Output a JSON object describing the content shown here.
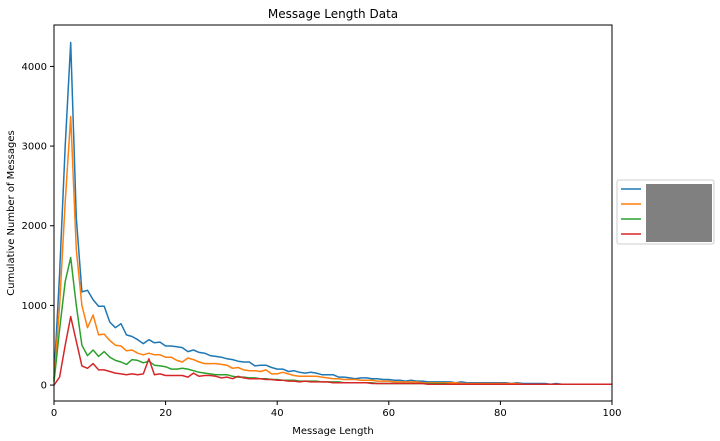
{
  "chart_data": {
    "type": "line",
    "title": "Message Length Data",
    "xlabel": "Message Length",
    "ylabel": "Cumulative Number of Messages",
    "xlim": [
      0,
      100
    ],
    "ylim": [
      -200,
      4520
    ],
    "xticks": [
      0,
      20,
      40,
      60,
      80,
      100
    ],
    "yticks": [
      0,
      1000,
      2000,
      3000,
      4000
    ],
    "grid": false,
    "legend": {
      "placement": "center-right-outside",
      "labels_redacted": true,
      "redaction_color": "#808080"
    },
    "x": [
      0,
      1,
      2,
      3,
      4,
      5,
      6,
      7,
      8,
      9,
      10,
      11,
      12,
      13,
      14,
      15,
      16,
      17,
      18,
      19,
      20,
      21,
      22,
      23,
      24,
      25,
      26,
      27,
      28,
      29,
      30,
      31,
      32,
      33,
      34,
      35,
      36,
      37,
      38,
      39,
      40,
      41,
      42,
      43,
      44,
      45,
      46,
      47,
      48,
      49,
      50,
      51,
      52,
      53,
      54,
      55,
      56,
      57,
      58,
      59,
      60,
      61,
      62,
      63,
      64,
      65,
      66,
      67,
      68,
      69,
      70,
      71,
      72,
      73,
      74,
      75,
      76,
      77,
      78,
      79,
      80,
      81,
      82,
      83,
      84,
      85,
      86,
      87,
      88,
      89,
      90,
      91,
      92,
      93,
      94,
      95,
      96,
      97,
      98,
      99,
      100
    ],
    "series": [
      {
        "color": "#1f77b4",
        "values": [
          80,
          1400,
          3000,
          4300,
          2100,
          1170,
          1190,
          1070,
          990,
          990,
          790,
          720,
          770,
          630,
          610,
          570,
          520,
          570,
          530,
          540,
          490,
          490,
          480,
          470,
          420,
          440,
          410,
          400,
          370,
          360,
          350,
          330,
          320,
          300,
          290,
          290,
          240,
          250,
          250,
          220,
          200,
          200,
          170,
          180,
          160,
          150,
          160,
          150,
          130,
          130,
          130,
          100,
          100,
          90,
          80,
          90,
          90,
          80,
          80,
          70,
          70,
          60,
          60,
          50,
          60,
          50,
          50,
          40,
          40,
          40,
          40,
          40,
          30,
          40,
          30,
          30,
          30,
          30,
          30,
          30,
          30,
          30,
          20,
          30,
          20,
          20,
          20,
          20,
          20,
          10,
          20,
          10,
          10,
          10,
          10,
          10,
          10,
          10,
          10,
          10,
          10
        ]
      },
      {
        "color": "#ff7f0e",
        "values": [
          60,
          1000,
          2300,
          3370,
          1700,
          1000,
          720,
          880,
          630,
          640,
          560,
          500,
          490,
          430,
          440,
          400,
          380,
          400,
          380,
          380,
          350,
          350,
          310,
          290,
          340,
          320,
          290,
          270,
          270,
          270,
          260,
          250,
          210,
          220,
          190,
          180,
          180,
          170,
          190,
          140,
          140,
          160,
          140,
          120,
          110,
          110,
          110,
          110,
          100,
          90,
          80,
          80,
          70,
          70,
          70,
          60,
          60,
          60,
          50,
          50,
          50,
          40,
          40,
          40,
          40,
          40,
          30,
          30,
          30,
          30,
          30,
          30,
          30,
          20,
          20,
          20,
          20,
          20,
          20,
          20,
          20,
          20,
          20,
          20,
          10,
          10,
          10,
          10,
          10,
          10,
          10,
          10,
          10,
          10,
          10,
          10,
          10,
          10,
          10,
          10,
          10
        ]
      },
      {
        "color": "#2ca02c",
        "values": [
          40,
          700,
          1300,
          1600,
          1000,
          500,
          370,
          440,
          360,
          420,
          350,
          310,
          290,
          260,
          320,
          310,
          280,
          300,
          250,
          240,
          230,
          200,
          200,
          210,
          200,
          180,
          160,
          150,
          140,
          130,
          130,
          130,
          110,
          100,
          100,
          90,
          90,
          80,
          80,
          70,
          70,
          60,
          60,
          60,
          50,
          50,
          50,
          50,
          40,
          40,
          40,
          40,
          30,
          30,
          30,
          30,
          30,
          30,
          20,
          20,
          20,
          20,
          20,
          20,
          20,
          20,
          20,
          20,
          20,
          20,
          20,
          10,
          10,
          10,
          10,
          10,
          10,
          10,
          10,
          10,
          10,
          10,
          10,
          10,
          10,
          10,
          10,
          10,
          10,
          10,
          10,
          10,
          10,
          10,
          10,
          10,
          10,
          10,
          10,
          10,
          10
        ]
      },
      {
        "color": "#d62728",
        "values": [
          0,
          100,
          500,
          860,
          550,
          240,
          210,
          270,
          190,
          190,
          170,
          150,
          140,
          130,
          140,
          130,
          140,
          330,
          130,
          140,
          120,
          120,
          120,
          120,
          100,
          150,
          110,
          120,
          120,
          110,
          90,
          100,
          80,
          110,
          90,
          80,
          80,
          80,
          70,
          70,
          60,
          60,
          50,
          50,
          40,
          50,
          40,
          40,
          40,
          40,
          30,
          30,
          30,
          30,
          30,
          30,
          30,
          20,
          20,
          20,
          20,
          20,
          20,
          20,
          20,
          20,
          20,
          10,
          10,
          10,
          10,
          10,
          10,
          10,
          10,
          10,
          10,
          10,
          10,
          10,
          10,
          10,
          10,
          10,
          10,
          10,
          10,
          10,
          10,
          10,
          10,
          10,
          10,
          10,
          10,
          10,
          10,
          10,
          10,
          10,
          10
        ]
      }
    ]
  }
}
